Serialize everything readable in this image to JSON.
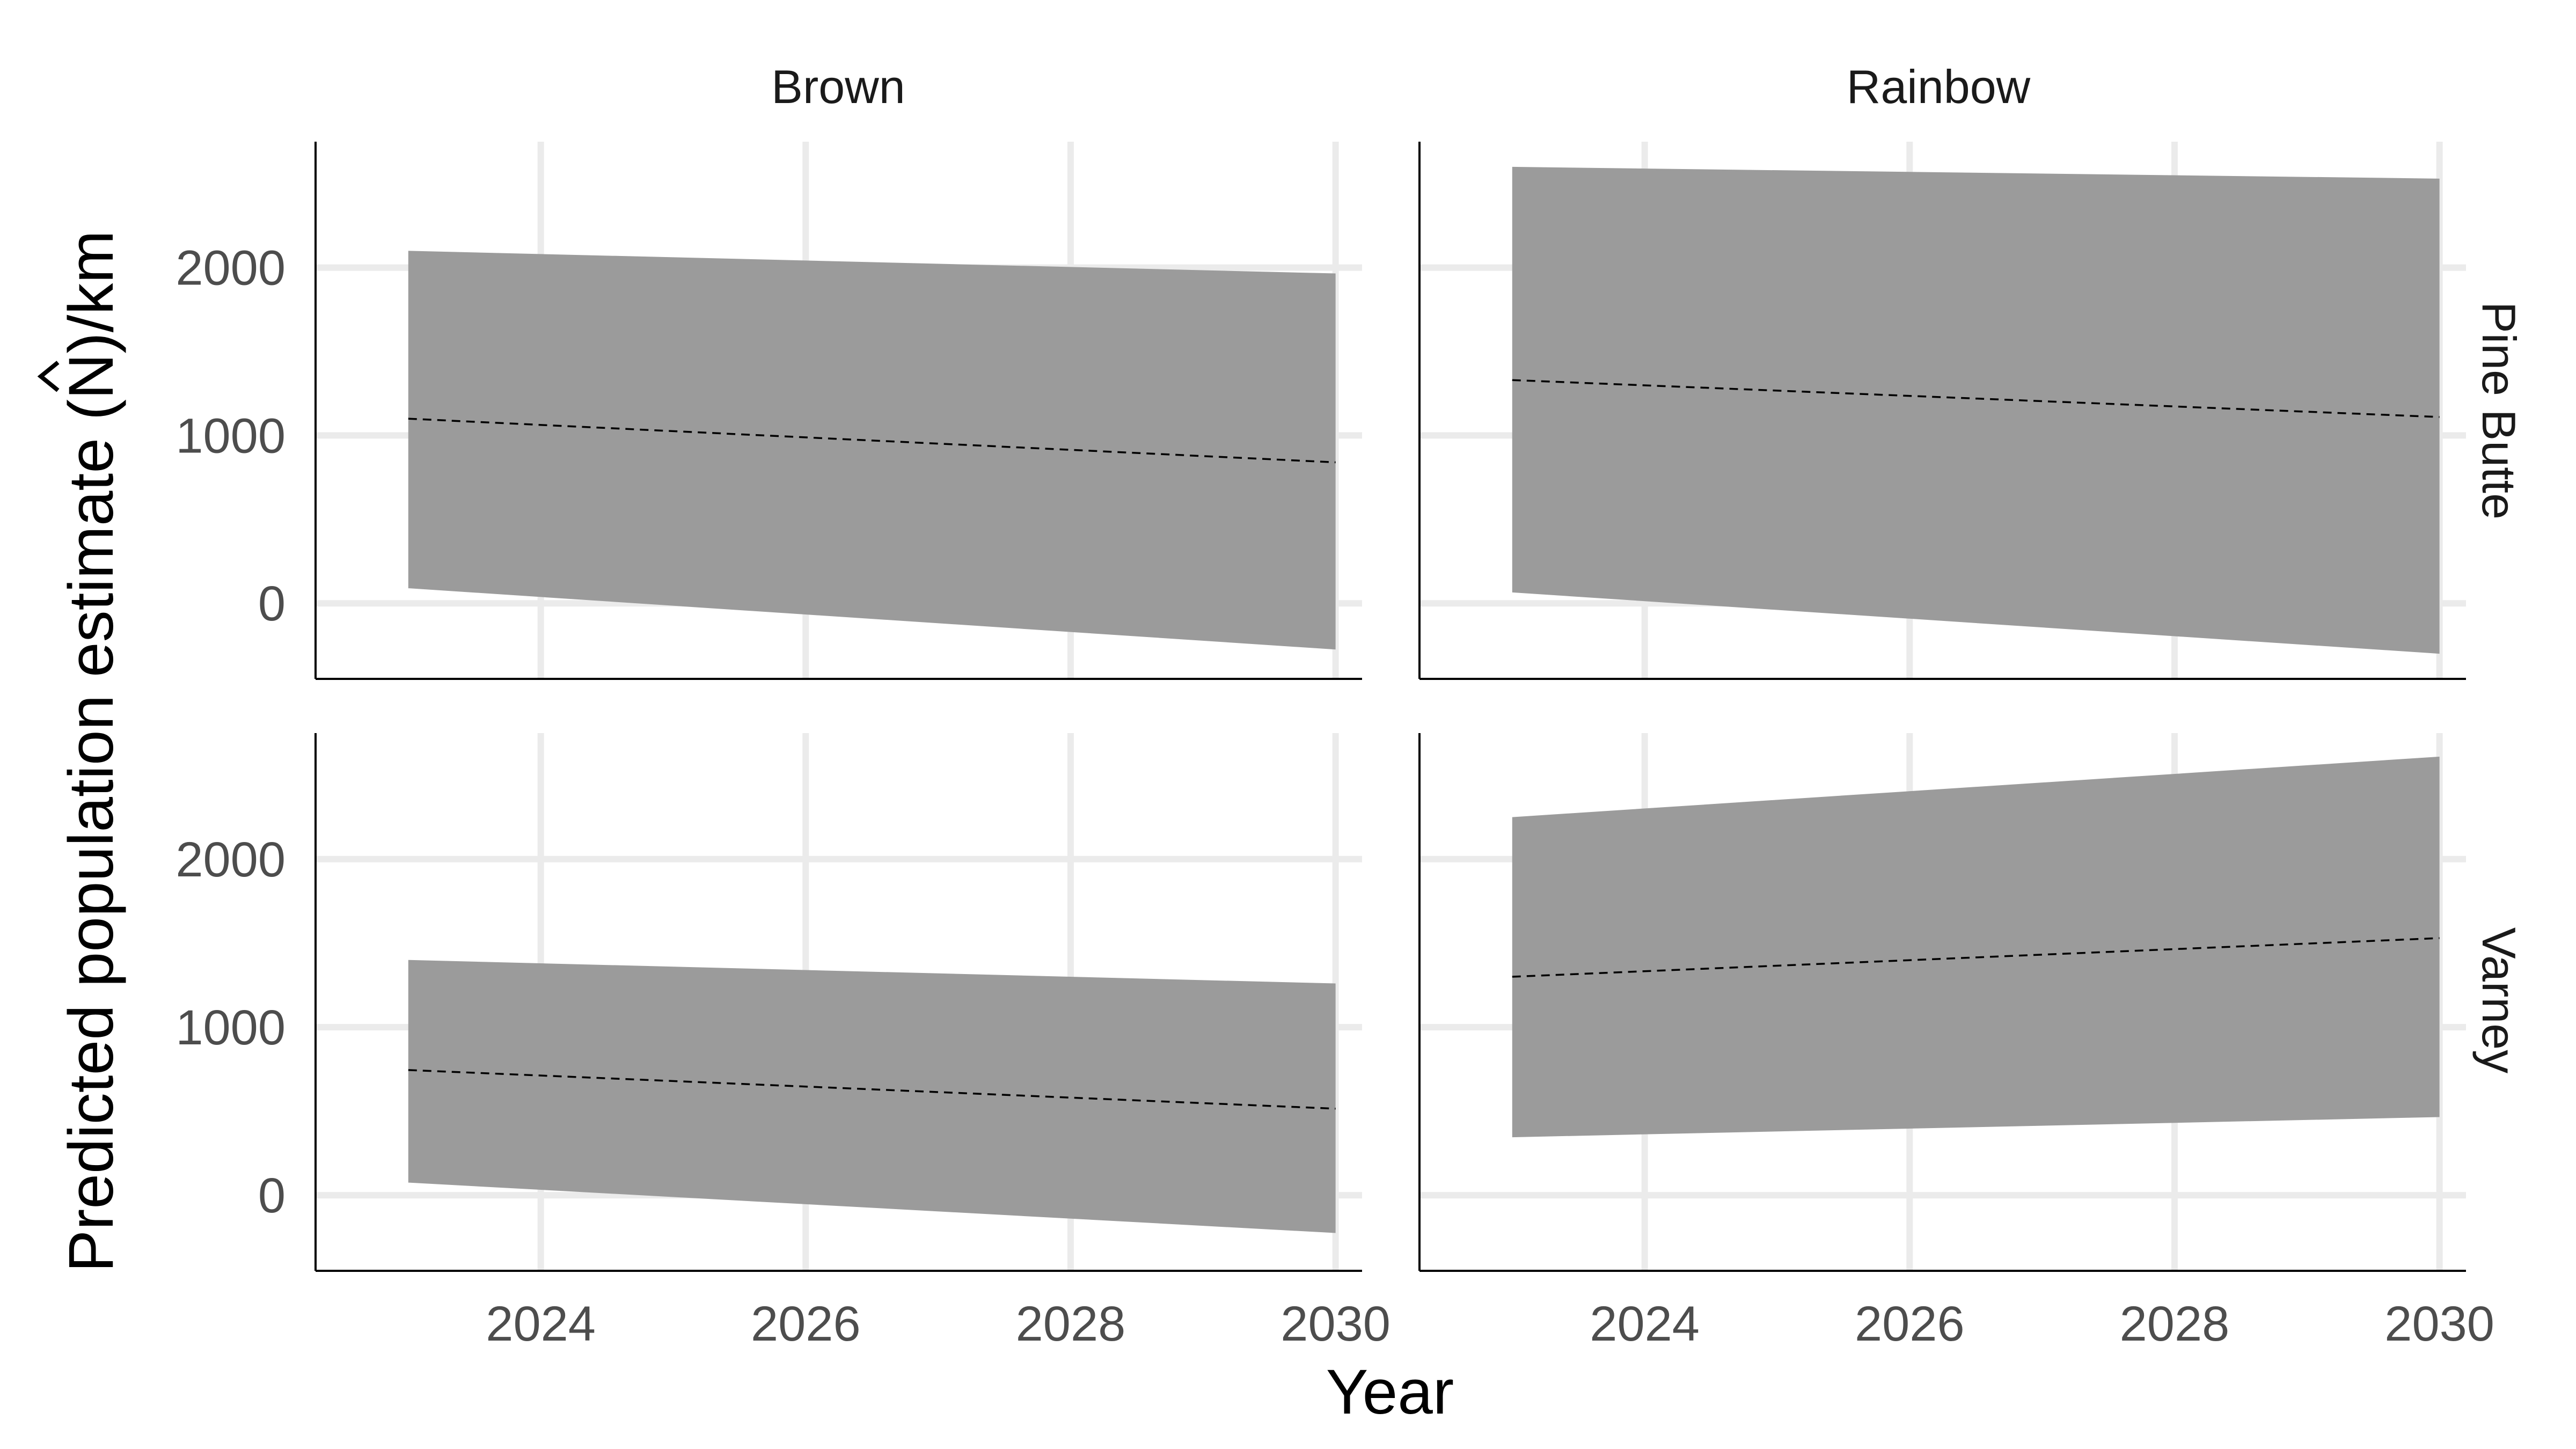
{
  "chart_data": {
    "type": "area",
    "xlabel": "Year",
    "ylabel": "Predicted population estimate (",
    "ylabel_hat_symbol": "N",
    "ylabel_suffix": ")/km",
    "columns": [
      "Brown",
      "Rainbow"
    ],
    "rows": [
      "Pine Butte",
      "Varney"
    ],
    "xlim": [
      2022.3,
      2030.2
    ],
    "ylim": [
      -450,
      2750
    ],
    "xticks": [
      2024,
      2026,
      2028,
      2030
    ],
    "yticks": [
      0,
      1000,
      2000
    ],
    "x_tick_labels": [
      "2024",
      "2026",
      "2028",
      "2030"
    ],
    "y_tick_labels": [
      "0",
      "1000",
      "2000"
    ],
    "grid": true,
    "ribbon_color": "#999999",
    "line_color": "#000000",
    "panels": [
      {
        "row": "Pine Butte",
        "column": "Brown",
        "x": [
          2023,
          2030
        ],
        "estimate": [
          1100,
          840
        ],
        "lower": [
          90,
          -275
        ],
        "upper": [
          2100,
          1965
        ]
      },
      {
        "row": "Pine Butte",
        "column": "Rainbow",
        "x": [
          2023,
          2030
        ],
        "estimate": [
          1330,
          1110
        ],
        "lower": [
          65,
          -300
        ],
        "upper": [
          2600,
          2530
        ]
      },
      {
        "row": "Varney",
        "column": "Brown",
        "x": [
          2023,
          2030
        ],
        "estimate": [
          745,
          515
        ],
        "lower": [
          75,
          -225
        ],
        "upper": [
          1400,
          1260
        ]
      },
      {
        "row": "Varney",
        "column": "Rainbow",
        "x": [
          2023,
          2030
        ],
        "estimate": [
          1300,
          1530
        ],
        "lower": [
          345,
          465
        ],
        "upper": [
          2250,
          2610
        ]
      }
    ]
  }
}
